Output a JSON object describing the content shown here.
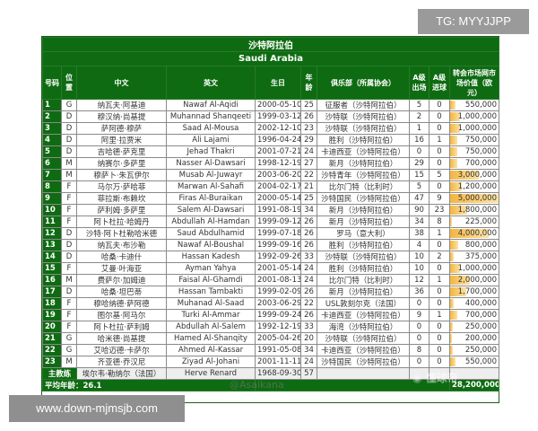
{
  "watermark_top": "TG: MYYJJPP",
  "watermark_bottom": "www.down-mjmsjb.com",
  "weibo_watermark": "@Asaikana",
  "logo_text": "懂球帝",
  "colors": {
    "header_green": "#0e6b12",
    "bar": "#f3b540"
  },
  "table": {
    "title_cn": "沙特阿拉伯",
    "title_en": "Saudi Arabia",
    "headers": [
      "号码",
      "位置",
      "中文",
      "英文",
      "生日",
      "年龄",
      "俱乐部（所属协会）",
      "A级出场",
      "A级进球",
      "转会市场网市场价值（欧元）"
    ],
    "max_value": 5000000,
    "rows": [
      [
        "1",
        "G",
        "纳瓦夫·阿基迪",
        "Nawaf Al-Aqidi",
        "2000-05-10",
        "25",
        "征服者（沙特阿拉伯）",
        "5",
        "0",
        "550,000",
        550000
      ],
      [
        "2",
        "D",
        "穆汉纳·尚基提",
        "Muhannad Shanqeeti",
        "1999-03-12",
        "26",
        "沙特联（沙特阿拉伯）",
        "2",
        "0",
        "1,000,000",
        1000000
      ],
      [
        "3",
        "D",
        "萨阿德·穆萨",
        "Saad Al-Mousa",
        "2002-12-10",
        "23",
        "沙特联（沙特阿拉伯）",
        "1",
        "0",
        "1,000,000",
        1000000
      ],
      [
        "4",
        "D",
        "阿里·拉贾米",
        "Ali Lajami",
        "1996-04-24",
        "29",
        "胜利（沙特阿拉伯）",
        "16",
        "1",
        "750,000",
        750000
      ],
      [
        "5",
        "D",
        "吉哈德·萨克里",
        "Jehad Thakri",
        "2001-07-21",
        "24",
        "卡迪西亚（沙特阿拉伯）",
        "0",
        "0",
        "750,000",
        750000
      ],
      [
        "6",
        "M",
        "纳赛尔·多萨里",
        "Nasser Al-Dawsari",
        "1998-12-19",
        "27",
        "新月（沙特阿拉伯）",
        "29",
        "0",
        "700,000",
        700000
      ],
      [
        "7",
        "M",
        "穆萨卜·朱瓦伊尔",
        "Musab Al-Juwayr",
        "2003-06-20",
        "22",
        "沙特青年（沙特阿拉伯）",
        "15",
        "5",
        "3,000,000",
        3000000
      ],
      [
        "8",
        "F",
        "马尔万·萨哈菲",
        "Marwan Al-Sahafi",
        "2004-02-17",
        "21",
        "比尔门特（比利时）",
        "5",
        "0",
        "1,200,000",
        1200000
      ],
      [
        "9",
        "F",
        "菲拉斯·布赖坎",
        "Firas Al-Buraikan",
        "2000-05-14",
        "25",
        "沙特国民（沙特阿拉伯）",
        "47",
        "9",
        "5,000,000",
        5000000
      ],
      [
        "10",
        "F",
        "萨利姆·多萨里",
        "Salem Al-Dawsari",
        "1991-08-19",
        "34",
        "新月（沙特阿拉伯）",
        "90",
        "23",
        "1,800,000",
        1800000
      ],
      [
        "11",
        "F",
        "阿卜杜拉·哈姆丹",
        "Abdullah Al-Hamdan",
        "1999-09-12",
        "26",
        "新月（沙特阿拉伯）",
        "34",
        "8",
        "225,000",
        225000
      ],
      [
        "12",
        "D",
        "沙特·阿卜杜勒哈米德",
        "Saud Abdulhamid",
        "1999-07-18",
        "26",
        "罗马（意大利）",
        "38",
        "1",
        "4,000,000",
        4000000
      ],
      [
        "13",
        "D",
        "纳瓦夫·布沙勒",
        "Nawaf Al-Boushal",
        "1999-09-16",
        "26",
        "胜利（沙特阿拉伯）",
        "4",
        "0",
        "800,000",
        800000
      ],
      [
        "14",
        "D",
        "哈桑·卡迪什",
        "Hassan Kadesh",
        "1992-09-26",
        "33",
        "沙特联（沙特阿拉伯）",
        "10",
        "2",
        "375,000",
        375000
      ],
      [
        "15",
        "F",
        "艾曼·叶海亚",
        "Ayman Yahya",
        "2001-05-14",
        "24",
        "胜利（沙特阿拉伯）",
        "10",
        "0",
        "1,000,000",
        1000000
      ],
      [
        "16",
        "M",
        "费萨尔·加姆迪",
        "Faisal Al-Ghamdi",
        "2001-08-13",
        "24",
        "比尔门特（比利时）",
        "12",
        "1",
        "2,000,000",
        2000000
      ],
      [
        "17",
        "D",
        "哈桑·坦巴蒂",
        "Hassan Tambakti",
        "1999-02-09",
        "26",
        "新月（沙特阿拉伯）",
        "36",
        "0",
        "1,700,000",
        1700000
      ],
      [
        "18",
        "F",
        "穆哈纳德·萨阿德",
        "Muhanad Al-Saad",
        "2003-06-29",
        "22",
        "USL敦刻尔克（法国）",
        "0",
        "0",
        "400,000",
        400000
      ],
      [
        "19",
        "F",
        "图尔基·阿马尔",
        "Turki Al-Ammar",
        "1999-09-24",
        "26",
        "卡迪西亚（沙特阿拉伯）",
        "9",
        "1",
        "700,000",
        700000
      ],
      [
        "20",
        "F",
        "阿卜杜拉·萨利姆",
        "Abdullah Al-Salem",
        "1992-12-19",
        "33",
        "海湾（沙特阿拉伯）",
        "0",
        "0",
        "250,000",
        250000
      ],
      [
        "21",
        "G",
        "哈米德·尚基提",
        "Hamed Al-Shanqity",
        "2005-04-26",
        "20",
        "沙特联（沙特阿拉伯）",
        "0",
        "0",
        "200,000",
        200000
      ],
      [
        "22",
        "G",
        "艾哈迈德·卡萨尔",
        "Ahmed Al-Kassar",
        "1991-05-08",
        "34",
        "卡迪西亚（沙特阿拉伯）",
        "8",
        "0",
        "250,000",
        250000
      ],
      [
        "23",
        "M",
        "齐亚德·乔汉尼",
        "Ziyad Al-Johani",
        "2001-11-11",
        "24",
        "沙特国民（沙特阿拉伯）",
        "0",
        "0",
        "550,000",
        550000
      ]
    ],
    "coach": {
      "label": "主教练",
      "cn": "埃尔韦·勒纳尔（法国）",
      "en": "Herve Renard",
      "birth": "1968-09-30",
      "age": "57"
    },
    "average_age": "平均年龄：26.1",
    "total_value": "28,200,000"
  }
}
